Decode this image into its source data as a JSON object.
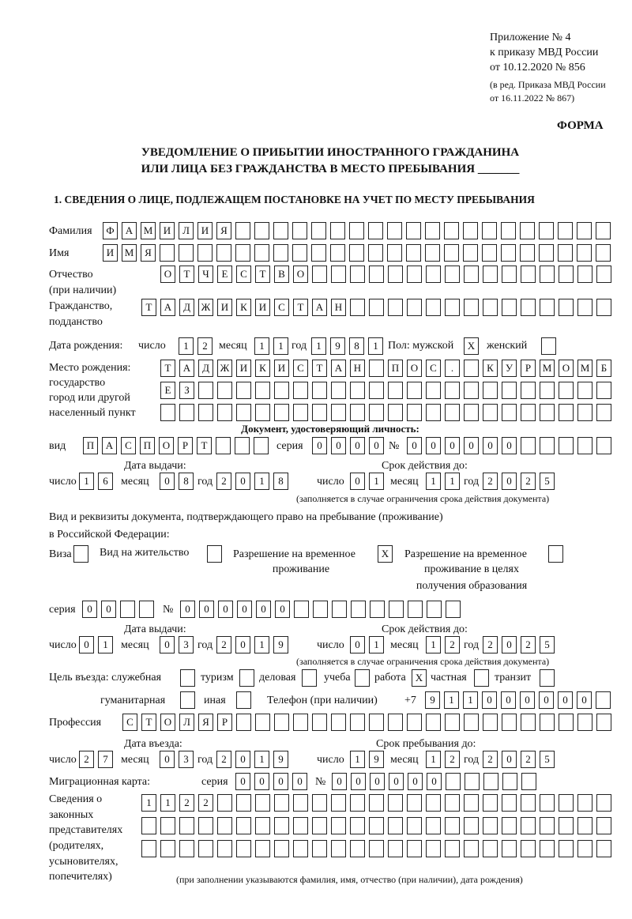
{
  "header": {
    "appendix": "Приложение № 4",
    "order": "к приказу МВД России",
    "order_date": "от 10.12.2020 № 856",
    "edition_1": "(в ред. Приказа МВД России",
    "edition_2": "от 16.11.2022 № 867)",
    "form_label": "ФОРМА",
    "title_1": "УВЕДОМЛЕНИЕ О ПРИБЫТИИ ИНОСТРАННОГО ГРАЖДАНИНА",
    "title_2": "ИЛИ ЛИЦА БЕЗ ГРАЖДАНСТВА В МЕСТО ПРЕБЫВАНИЯ _______",
    "section_1": "1. СВЕДЕНИЯ О ЛИЦЕ, ПОДЛЕЖАЩЕМ ПОСТАНОВКЕ НА УЧЕТ ПО МЕСТУ ПРЕБЫВАНИЯ"
  },
  "labels": {
    "surname": "Фамилия",
    "name": "Имя",
    "patronymic_1": "Отчество",
    "patronymic_2": "(при наличии)",
    "citizenship_1": "Гражданство,",
    "citizenship_2": "подданство",
    "birth_date": "Дата рождения:",
    "day": "число",
    "month": "месяц",
    "year": "год",
    "sex_male": "Пол: мужской",
    "sex_female": "женский",
    "birth_place_1": "Место рождения:",
    "birth_place_2": "государство",
    "birth_place_3": "город или другой",
    "birth_place_4": "населенный пункт",
    "id_doc": "Документ, удостоверяющий личность:",
    "kind": "вид",
    "series": "серия",
    "number": "№",
    "issue_date": "Дата выдачи:",
    "valid_until": "Срок действия до:",
    "validity_note": "(заполняется в случае ограничения срока действия документа)",
    "residence_doc_1": "Вид и реквизиты документа, подтверждающего право на пребывание (проживание)",
    "residence_doc_2": "в Российской Федерации:",
    "visa": "Виза",
    "residence_permit": "Вид на жительство",
    "temp_permit_1": "Разрешение на временное",
    "temp_permit_2": "проживание",
    "temp_edu_1": "Разрешение на временное",
    "temp_edu_2": "проживание в целях",
    "temp_edu_3": "получения образования",
    "purpose": "Цель въезда: служебная",
    "tourism": "туризм",
    "business": "деловая",
    "study": "учеба",
    "work": "работа",
    "private": "частная",
    "transit": "транзит",
    "humanitarian": "гуманитарная",
    "other": "иная",
    "phone": "Телефон (при наличии)",
    "phone_prefix": "+7",
    "profession": "Профессия",
    "entry_date": "Дата въезда:",
    "stay_until": "Срок пребывания до:",
    "migration_card": "Миграционная карта:",
    "reps_1": "Сведения о",
    "reps_2": "законных",
    "reps_3": "представителях",
    "reps_4": "(родителях,",
    "reps_5": "усыновителях,",
    "reps_6": "попечителях)",
    "reps_note": "(при заполнении указываются фамилия, имя, отчество (при наличии), дата рождения)"
  },
  "person": {
    "surname": "ФАМИЛИЯ",
    "name": "ИМЯ",
    "patronymic": "ОТЧЕСТВО",
    "citizenship": "ТАДЖИКИСТАН",
    "birth_day": "12",
    "birth_month": "11",
    "birth_year": "1981",
    "sex_male": "X",
    "sex_female": "",
    "birth_place_1": "ТАДЖИКИСТАН ПОС. КУРМОМБ",
    "birth_place_2": "ЕЗ",
    "birth_place_3": ""
  },
  "id_document": {
    "kind": "ПАСПОРТ",
    "series": "0000",
    "number": "000000",
    "issue_day": "16",
    "issue_month": "08",
    "issue_year": "2018",
    "valid_day": "01",
    "valid_month": "11",
    "valid_year": "2025"
  },
  "residence_document": {
    "visa": "",
    "residence_permit": "",
    "temp_permit": "X",
    "temp_edu": "",
    "series": "00",
    "number": "000000",
    "issue_day": "01",
    "issue_month": "03",
    "issue_year": "2019",
    "valid_day": "01",
    "valid_month": "12",
    "valid_year": "2025"
  },
  "purpose": {
    "official": "",
    "tourism": "",
    "business": "",
    "study": "",
    "work": "X",
    "private": "",
    "transit": "",
    "humanitarian": "",
    "other": ""
  },
  "phone": "911000000",
  "profession": "СТОЛЯР",
  "stay": {
    "entry_day": "27",
    "entry_month": "03",
    "entry_year": "2019",
    "until_day": "19",
    "until_month": "12",
    "until_year": "2025"
  },
  "migration_card": {
    "series": "0000",
    "number": "000000"
  },
  "representatives": {
    "line_1": "1122",
    "line_2": "",
    "line_3": ""
  }
}
